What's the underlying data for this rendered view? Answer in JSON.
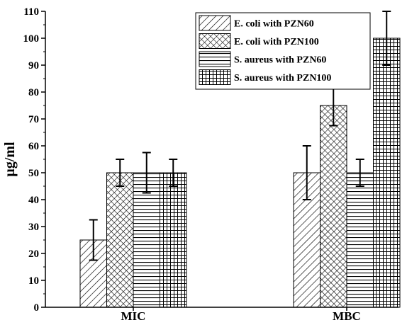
{
  "chart_data": {
    "type": "bar",
    "title": "",
    "xlabel": "",
    "ylabel": "μg/ml",
    "ylim": [
      0,
      110
    ],
    "yticks": [
      0,
      10,
      20,
      30,
      40,
      50,
      60,
      70,
      80,
      90,
      100,
      110
    ],
    "categories": [
      "MIC",
      "MBC"
    ],
    "series": [
      {
        "name": "E. coli with PZN60",
        "pattern": "diagonal-hatch",
        "values": [
          25,
          50
        ],
        "errors": [
          7.5,
          10
        ]
      },
      {
        "name": "E. coli with PZN100",
        "pattern": "crosshatch",
        "values": [
          50,
          75
        ],
        "errors": [
          5,
          7.5
        ]
      },
      {
        "name": "S. aureus with PZN60",
        "pattern": "horizontal-lines",
        "values": [
          50,
          50
        ],
        "errors": [
          7.5,
          5
        ]
      },
      {
        "name": "S. aureus with PZN100",
        "pattern": "grid",
        "values": [
          50,
          100
        ],
        "errors": [
          5,
          10
        ]
      }
    ],
    "legend_position": "top-right",
    "grid": false,
    "colors": {
      "bar_fill": "#ffffff",
      "stroke": "#000000"
    }
  }
}
